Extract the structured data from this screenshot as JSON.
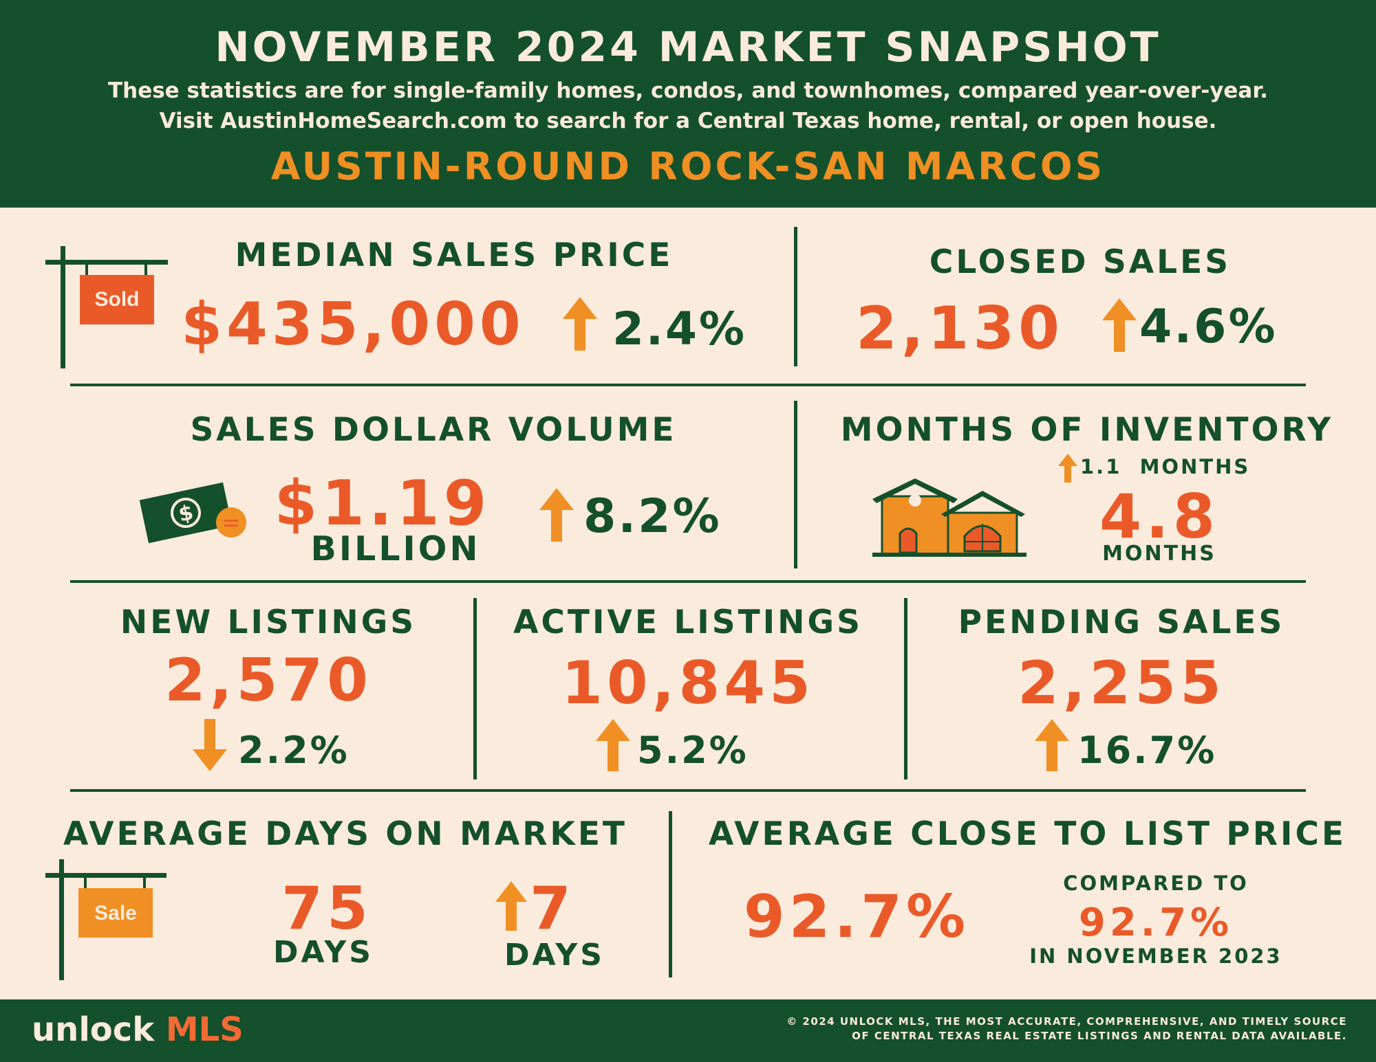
{
  "header": {
    "title": "NOVEMBER 2024 MARKET SNAPSHOT",
    "subtitle_line1": "These statistics are for single-family homes, condos, and townhomes, compared year-over-year.",
    "subtitle_line2": "Visit AustinHomeSearch.com to search for a Central Texas home, rental, or open house.",
    "region": "AUSTIN-ROUND ROCK-SAN MARCOS"
  },
  "median_sales_price": {
    "label": "MEDIAN SALES PRICE",
    "value": "$435,000",
    "change": "2.4%",
    "direction": "up",
    "sign_text": "Sold"
  },
  "closed_sales": {
    "label": "CLOSED SALES",
    "value": "2,130",
    "change": "4.6%",
    "direction": "up"
  },
  "sales_dollar_volume": {
    "label": "SALES DOLLAR VOLUME",
    "value": "$1.19",
    "unit": "BILLION",
    "change": "8.2%",
    "direction": "up",
    "icon": "money-icon"
  },
  "months_of_inventory": {
    "label": "MONTHS OF INVENTORY",
    "change": "1.1  MONTHS",
    "value": "4.8",
    "unit": "MONTHS",
    "direction": "up",
    "icon": "house-icon"
  },
  "new_listings": {
    "label": "NEW LISTINGS",
    "value": "2,570",
    "change": "2.2%",
    "direction": "down"
  },
  "active_listings": {
    "label": "ACTIVE LISTINGS",
    "value": "10,845",
    "change": "5.2%",
    "direction": "up"
  },
  "pending_sales": {
    "label": "PENDING SALES",
    "value": "2,255",
    "change": "16.7%",
    "direction": "up"
  },
  "days_on_market": {
    "label": "AVERAGE DAYS ON MARKET",
    "value": "75",
    "unit": "DAYS",
    "change": "7",
    "change_unit": "DAYS",
    "direction": "up",
    "sign_text": "Sale"
  },
  "close_to_list": {
    "label": "AVERAGE CLOSE TO LIST PRICE",
    "value": "92.7%",
    "compared_label": "COMPARED TO",
    "compared_value": "92.7%",
    "compared_period": "IN NOVEMBER 2023"
  },
  "footer": {
    "logo_word": "unlock",
    "logo_accent": "MLS",
    "copyright_line1": "© 2024 UNLOCK MLS, THE MOST ACCURATE, COMPREHENSIVE, AND TIMELY SOURCE",
    "copyright_line2": "OF CENTRAL TEXAS REAL ESTATE LISTINGS AND RENTAL DATA AVAILABLE."
  },
  "colors": {
    "green": "#14502b",
    "cream": "#fbebdc",
    "orange": "#f08f23",
    "red_orange": "#ea5a29"
  }
}
